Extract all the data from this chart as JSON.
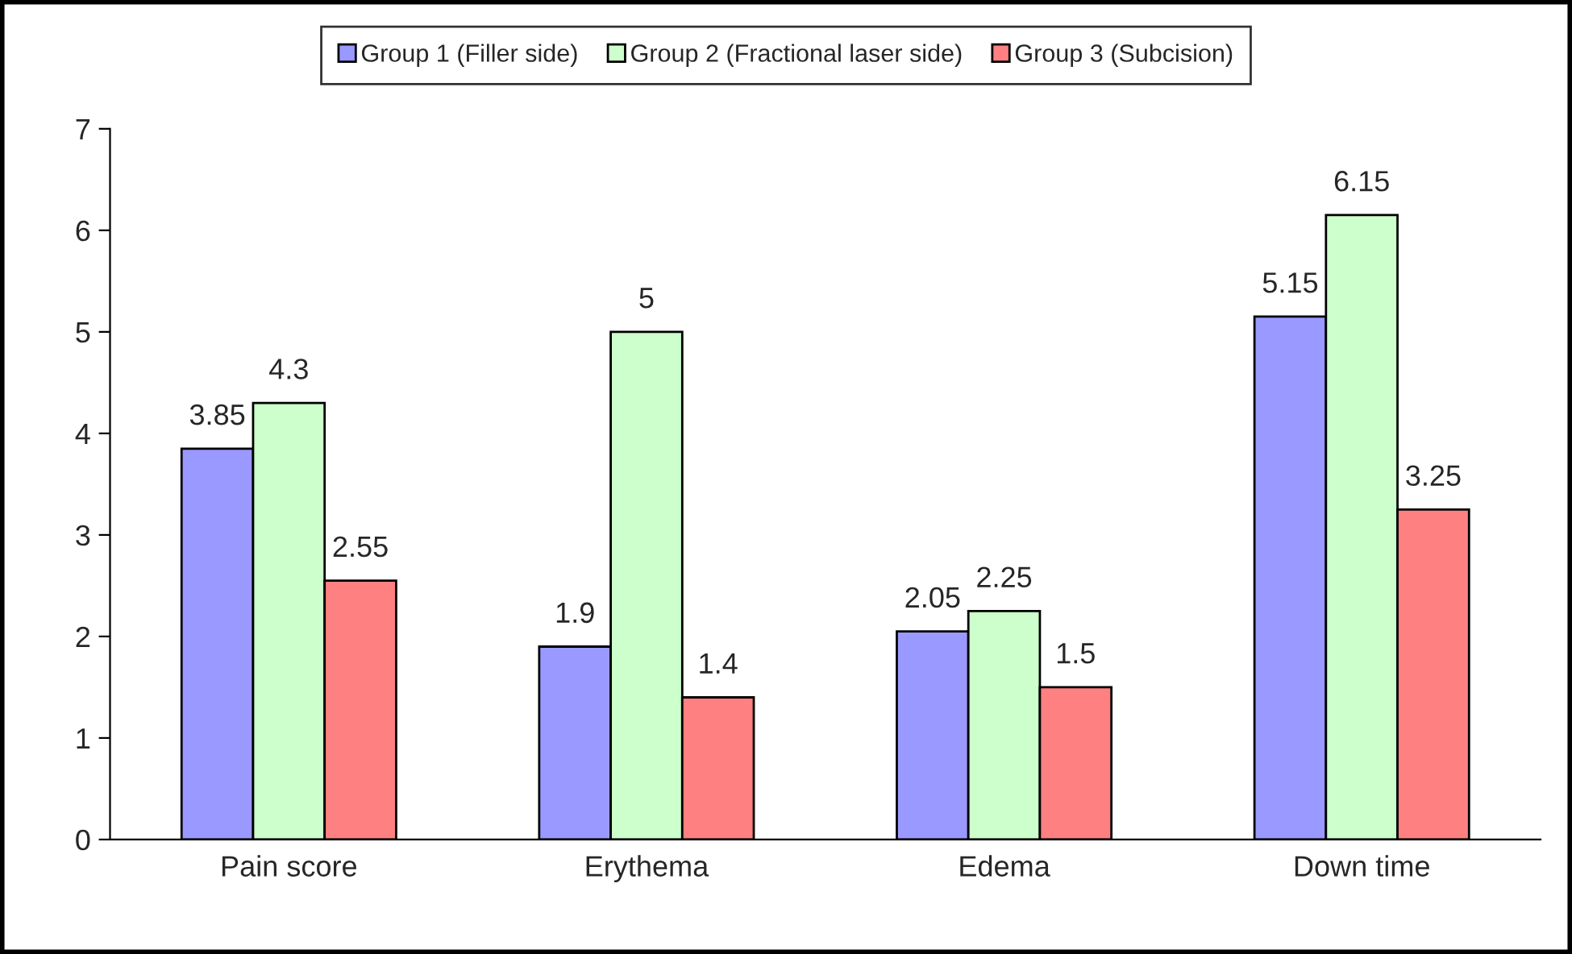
{
  "chart_data": {
    "type": "bar",
    "categories": [
      "Pain score",
      "Erythema",
      "Edema",
      "Down time"
    ],
    "series": [
      {
        "name": "Group 1 (Filler side)",
        "color": "#9999ff",
        "values": [
          3.85,
          1.9,
          2.05,
          5.15
        ]
      },
      {
        "name": "Group 2 (Fractional laser side)",
        "color": "#ccffcc",
        "values": [
          4.3,
          5,
          2.25,
          6.15
        ]
      },
      {
        "name": "Group 3 (Subcision)",
        "color": "#ff8080",
        "values": [
          2.55,
          1.4,
          1.5,
          3.25
        ]
      }
    ],
    "ylim": [
      0,
      7
    ],
    "yticks": [
      0,
      1,
      2,
      3,
      4,
      5,
      6,
      7
    ],
    "data_labels": true,
    "legend": "top",
    "grid": false
  }
}
